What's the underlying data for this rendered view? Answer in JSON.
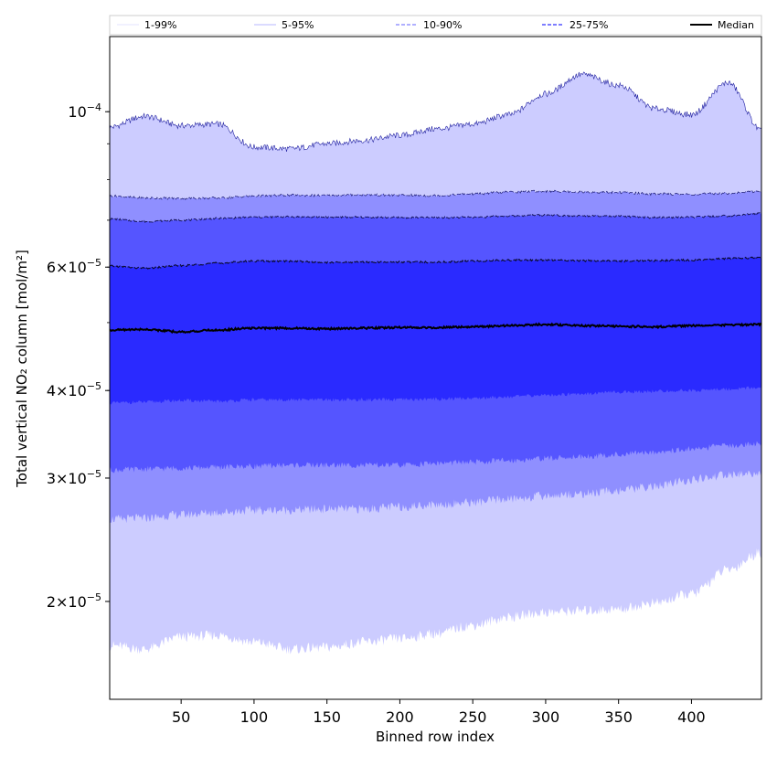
{
  "chart_data": {
    "type": "area",
    "title": "",
    "xlabel": "Binned row index",
    "ylabel": "Total vertical NO₂ column [mol/m²]",
    "xlim": [
      1,
      448
    ],
    "ylim": [
      1.45e-05,
      0.000128
    ],
    "yscale": "log",
    "grid": false,
    "legend_position": "top",
    "x_ticks": [
      {
        "value": 50,
        "label": "50"
      },
      {
        "value": 100,
        "label": "100"
      },
      {
        "value": 150,
        "label": "150"
      },
      {
        "value": 200,
        "label": "200"
      },
      {
        "value": 250,
        "label": "250"
      },
      {
        "value": 300,
        "label": "300"
      },
      {
        "value": 350,
        "label": "350"
      },
      {
        "value": 400,
        "label": "400"
      }
    ],
    "y_ticks": [
      {
        "value": 2e-05,
        "mantissa": "2",
        "exponent": "−5"
      },
      {
        "value": 3e-05,
        "mantissa": "3",
        "exponent": "−5"
      },
      {
        "value": 4e-05,
        "mantissa": "4",
        "exponent": "−5"
      },
      {
        "value": 6e-05,
        "mantissa": "6",
        "exponent": "−5"
      },
      {
        "value": 0.0001,
        "mantissa": "",
        "exponent": "−4"
      }
    ],
    "x": [
      1,
      25,
      50,
      75,
      100,
      125,
      150,
      175,
      200,
      225,
      250,
      275,
      300,
      325,
      350,
      375,
      400,
      425,
      448
    ],
    "bands": [
      {
        "name": "1-99%",
        "color": "#ccccff",
        "lower": [
          1.73e-05,
          1.71e-05,
          1.78e-05,
          1.79e-05,
          1.75e-05,
          1.71e-05,
          1.72e-05,
          1.75e-05,
          1.77e-05,
          1.8e-05,
          1.85e-05,
          1.9e-05,
          1.93e-05,
          1.94e-05,
          1.95e-05,
          1.99e-05,
          2.05e-05,
          2.22e-05,
          2.35e-05
        ],
        "upper": [
          9.5e-05,
          9.85e-05,
          9.55e-05,
          9.6e-05,
          8.9e-05,
          8.85e-05,
          9e-05,
          9.1e-05,
          9.25e-05,
          9.45e-05,
          9.6e-05,
          9.9e-05,
          0.000106,
          0.000113,
          0.000109,
          0.000101,
          9.9e-05,
          0.00011,
          9.4e-05
        ]
      },
      {
        "name": "5-95%",
        "color": "#8f8fff",
        "lower": [
          2.62e-05,
          2.63e-05,
          2.66e-05,
          2.68e-05,
          2.7e-05,
          2.7e-05,
          2.71e-05,
          2.71e-05,
          2.73e-05,
          2.75e-05,
          2.77e-05,
          2.8e-05,
          2.83e-05,
          2.85e-05,
          2.88e-05,
          2.92e-05,
          2.98e-05,
          3.03e-05,
          3.05e-05
        ],
        "upper": [
          7.58e-05,
          7.53e-05,
          7.52e-05,
          7.53e-05,
          7.58e-05,
          7.6e-05,
          7.59e-05,
          7.61e-05,
          7.6e-05,
          7.59e-05,
          7.63e-05,
          7.68e-05,
          7.7e-05,
          7.68e-05,
          7.67e-05,
          7.63e-05,
          7.62e-05,
          7.65e-05,
          7.7e-05
        ]
      },
      {
        "name": "10-90%",
        "color": "#5555ff",
        "lower": [
          3.08e-05,
          3.09e-05,
          3.1e-05,
          3.11e-05,
          3.12e-05,
          3.13e-05,
          3.13e-05,
          3.13e-05,
          3.13e-05,
          3.15e-05,
          3.16e-05,
          3.18e-05,
          3.2e-05,
          3.22e-05,
          3.24e-05,
          3.27e-05,
          3.3e-05,
          3.34e-05,
          3.36e-05
        ],
        "upper": [
          7.03e-05,
          6.97e-05,
          7e-05,
          7.04e-05,
          7.07e-05,
          7.08e-05,
          7.07e-05,
          7.07e-05,
          7.06e-05,
          7.06e-05,
          7.07e-05,
          7.1e-05,
          7.12e-05,
          7.1e-05,
          7.09e-05,
          7.06e-05,
          7.07e-05,
          7.1e-05,
          7.16e-05
        ]
      },
      {
        "name": "25-75%",
        "color": "#2a2aff",
        "lower": [
          3.84e-05,
          3.85e-05,
          3.87e-05,
          3.86e-05,
          3.88e-05,
          3.88e-05,
          3.88e-05,
          3.88e-05,
          3.88e-05,
          3.89e-05,
          3.9e-05,
          3.92e-05,
          3.94e-05,
          3.96e-05,
          3.98e-05,
          3.99e-05,
          4e-05,
          4.02e-05,
          4.04e-05
        ],
        "upper": [
          6.02e-05,
          5.98e-05,
          6.03e-05,
          6.08e-05,
          6.12e-05,
          6.12e-05,
          6.09e-05,
          6.1e-05,
          6.1e-05,
          6.1e-05,
          6.12e-05,
          6.14e-05,
          6.14e-05,
          6.13e-05,
          6.12e-05,
          6.13e-05,
          6.14e-05,
          6.17e-05,
          6.19e-05
        ]
      }
    ],
    "median": {
      "name": "Median",
      "color": "#000000",
      "values": [
        4.88e-05,
        4.89e-05,
        4.85e-05,
        4.88e-05,
        4.91e-05,
        4.91e-05,
        4.9e-05,
        4.91e-05,
        4.92e-05,
        4.92e-05,
        4.93e-05,
        4.95e-05,
        4.97e-05,
        4.95e-05,
        4.94e-05,
        4.93e-05,
        4.95e-05,
        4.96e-05,
        4.97e-05
      ]
    },
    "legend": [
      {
        "label": "1-99%",
        "color": "#c8c8ff",
        "style": "solid",
        "width": 0.6
      },
      {
        "label": "5-95%",
        "color": "#7070ff",
        "style": "solid",
        "width": 0.6
      },
      {
        "label": "10-90%",
        "color": "#6060ff",
        "style": "dashed",
        "width": 1
      },
      {
        "label": "25-75%",
        "color": "#3030ff",
        "style": "dashed",
        "width": 1.2
      },
      {
        "label": "Median",
        "color": "#000000",
        "style": "solid",
        "width": 2
      }
    ]
  }
}
